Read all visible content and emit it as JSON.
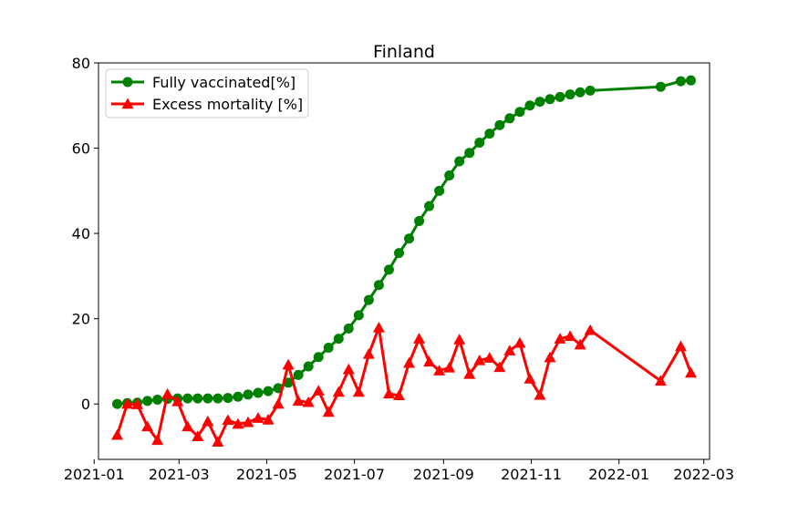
{
  "chart_data": {
    "type": "line",
    "title": "Finland",
    "xlabel": "",
    "ylabel": "",
    "x_type": "date",
    "xlim": [
      "2021-01-04",
      "2022-03-05"
    ],
    "ylim": [
      -13,
      80
    ],
    "x_ticks": [
      "2021-01-01",
      "2021-03-01",
      "2021-05-01",
      "2021-07-01",
      "2021-09-01",
      "2021-11-01",
      "2022-01-01",
      "2022-03-01"
    ],
    "x_tick_labels": [
      "2021-01",
      "2021-03",
      "2021-05",
      "2021-07",
      "2021-09",
      "2021-11",
      "2022-01",
      "2022-03"
    ],
    "y_ticks": [
      0,
      20,
      40,
      60,
      80
    ],
    "y_tick_labels": [
      "0",
      "20",
      "40",
      "60",
      "80"
    ],
    "grid": false,
    "legend_position": "top-left",
    "series": [
      {
        "name": "Fully vaccinated[%]",
        "color": "#008000",
        "marker": "circle",
        "points": [
          [
            "2021-01-17",
            0.0
          ],
          [
            "2021-01-24",
            0.2
          ],
          [
            "2021-01-31",
            0.3
          ],
          [
            "2021-02-07",
            0.7
          ],
          [
            "2021-02-14",
            1.0
          ],
          [
            "2021-02-21",
            1.2
          ],
          [
            "2021-02-28",
            1.3
          ],
          [
            "2021-03-07",
            1.3
          ],
          [
            "2021-03-14",
            1.3
          ],
          [
            "2021-03-21",
            1.3
          ],
          [
            "2021-03-28",
            1.3
          ],
          [
            "2021-04-04",
            1.4
          ],
          [
            "2021-04-11",
            1.7
          ],
          [
            "2021-04-18",
            2.2
          ],
          [
            "2021-04-25",
            2.6
          ],
          [
            "2021-05-02",
            3.0
          ],
          [
            "2021-05-09",
            3.7
          ],
          [
            "2021-05-16",
            5.0
          ],
          [
            "2021-05-23",
            6.8
          ],
          [
            "2021-05-30",
            8.8
          ],
          [
            "2021-06-06",
            11.0
          ],
          [
            "2021-06-13",
            13.2
          ],
          [
            "2021-06-20",
            15.3
          ],
          [
            "2021-06-27",
            17.7
          ],
          [
            "2021-07-04",
            20.8
          ],
          [
            "2021-07-11",
            24.4
          ],
          [
            "2021-07-18",
            27.9
          ],
          [
            "2021-07-25",
            31.5
          ],
          [
            "2021-08-01",
            35.4
          ],
          [
            "2021-08-08",
            38.8
          ],
          [
            "2021-08-15",
            42.9
          ],
          [
            "2021-08-22",
            46.4
          ],
          [
            "2021-08-29",
            50.0
          ],
          [
            "2021-09-05",
            53.6
          ],
          [
            "2021-09-12",
            56.9
          ],
          [
            "2021-09-19",
            58.9
          ],
          [
            "2021-09-26",
            61.3
          ],
          [
            "2021-10-03",
            63.4
          ],
          [
            "2021-10-10",
            65.4
          ],
          [
            "2021-10-17",
            67.0
          ],
          [
            "2021-10-24",
            68.5
          ],
          [
            "2021-10-31",
            70.0
          ],
          [
            "2021-11-07",
            70.9
          ],
          [
            "2021-11-14",
            71.5
          ],
          [
            "2021-11-21",
            72.0
          ],
          [
            "2021-11-28",
            72.6
          ],
          [
            "2021-12-05",
            73.1
          ],
          [
            "2021-12-12",
            73.5
          ],
          [
            "2022-01-30",
            74.4
          ],
          [
            "2022-02-13",
            75.7
          ],
          [
            "2022-02-20",
            75.9
          ]
        ]
      },
      {
        "name": "Excess mortality [%]",
        "color": "#ff0000",
        "marker": "triangle",
        "points": [
          [
            "2021-01-17",
            -7.3
          ],
          [
            "2021-01-24",
            0.0
          ],
          [
            "2021-01-31",
            -0.1
          ],
          [
            "2021-02-07",
            -5.3
          ],
          [
            "2021-02-14",
            -8.5
          ],
          [
            "2021-02-21",
            2.3
          ],
          [
            "2021-02-28",
            0.6
          ],
          [
            "2021-03-07",
            -5.3
          ],
          [
            "2021-03-14",
            -7.6
          ],
          [
            "2021-03-21",
            -4.1
          ],
          [
            "2021-03-28",
            -8.9
          ],
          [
            "2021-04-04",
            -3.8
          ],
          [
            "2021-04-11",
            -4.7
          ],
          [
            "2021-04-18",
            -4.3
          ],
          [
            "2021-04-25",
            -3.3
          ],
          [
            "2021-05-02",
            -3.7
          ],
          [
            "2021-05-09",
            0.0
          ],
          [
            "2021-05-16",
            9.2
          ],
          [
            "2021-05-23",
            0.7
          ],
          [
            "2021-05-30",
            0.4
          ],
          [
            "2021-06-06",
            3.1
          ],
          [
            "2021-06-13",
            -1.9
          ],
          [
            "2021-06-20",
            2.8
          ],
          [
            "2021-06-27",
            8.1
          ],
          [
            "2021-07-04",
            2.8
          ],
          [
            "2021-07-11",
            11.7
          ],
          [
            "2021-07-18",
            17.9
          ],
          [
            "2021-07-25",
            2.4
          ],
          [
            "2021-08-01",
            2.0
          ],
          [
            "2021-08-08",
            9.6
          ],
          [
            "2021-08-15",
            15.3
          ],
          [
            "2021-08-22",
            9.9
          ],
          [
            "2021-08-29",
            7.8
          ],
          [
            "2021-09-05",
            8.5
          ],
          [
            "2021-09-12",
            15.1
          ],
          [
            "2021-09-19",
            7.0
          ],
          [
            "2021-09-26",
            10.2
          ],
          [
            "2021-10-03",
            10.8
          ],
          [
            "2021-10-10",
            8.6
          ],
          [
            "2021-10-17",
            12.5
          ],
          [
            "2021-10-24",
            14.3
          ],
          [
            "2021-10-31",
            5.9
          ],
          [
            "2021-11-07",
            2.1
          ],
          [
            "2021-11-14",
            10.9
          ],
          [
            "2021-11-21",
            15.3
          ],
          [
            "2021-11-28",
            15.9
          ],
          [
            "2021-12-05",
            13.9
          ],
          [
            "2021-12-12",
            17.3
          ],
          [
            "2022-01-30",
            5.4
          ],
          [
            "2022-02-13",
            13.5
          ],
          [
            "2022-02-20",
            7.3
          ]
        ]
      }
    ]
  }
}
